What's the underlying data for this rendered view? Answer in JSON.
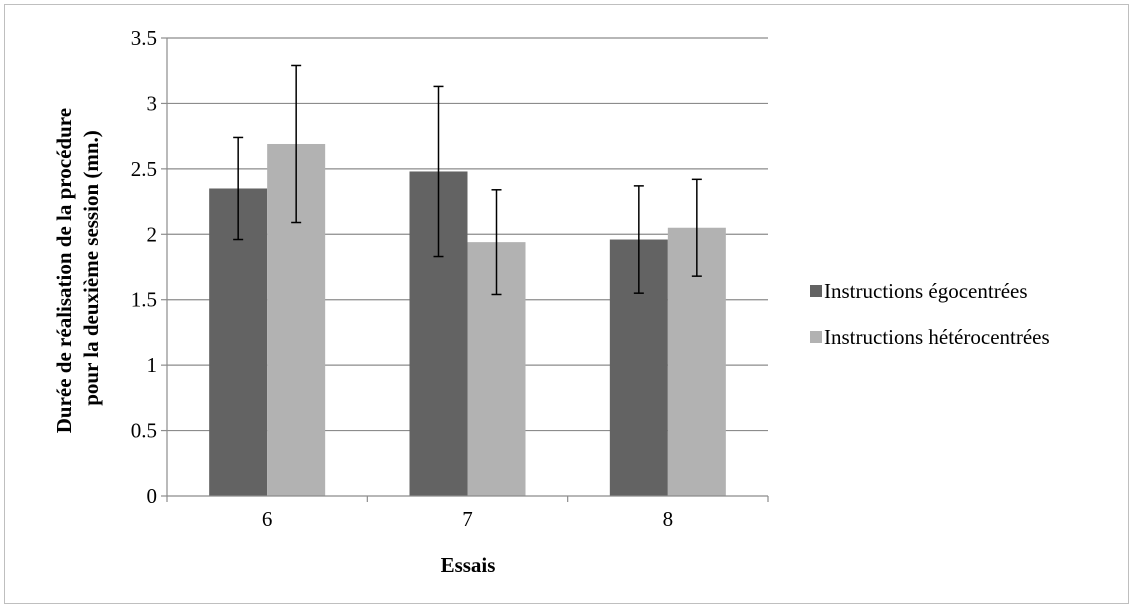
{
  "chart_data": {
    "type": "bar",
    "title": "",
    "categories": [
      "6",
      "7",
      "8"
    ],
    "series": [
      {
        "name": "Instructions égocentrées",
        "color": "#636363",
        "values": [
          2.35,
          2.48,
          1.96
        ],
        "error": [
          0.39,
          0.65,
          0.41
        ]
      },
      {
        "name": "Instructions hétérocentrées",
        "color": "#b2b2b2",
        "values": [
          2.69,
          1.94,
          2.05
        ],
        "error": [
          0.6,
          0.4,
          0.37
        ]
      }
    ],
    "xlabel": "Essais",
    "ylabel": "Durée de réalisation de la procédure pour la deuxième session (mn.)",
    "ylabel_lines": [
      "Durée de réalisation de la procédure",
      "pour la deuxième session (mn.)"
    ],
    "ylim": [
      0,
      3.5
    ],
    "yticks": [
      "0",
      "0.5",
      "1",
      "1.5",
      "2",
      "2.5",
      "3",
      "3.5"
    ],
    "grid": true,
    "legend": "right"
  }
}
